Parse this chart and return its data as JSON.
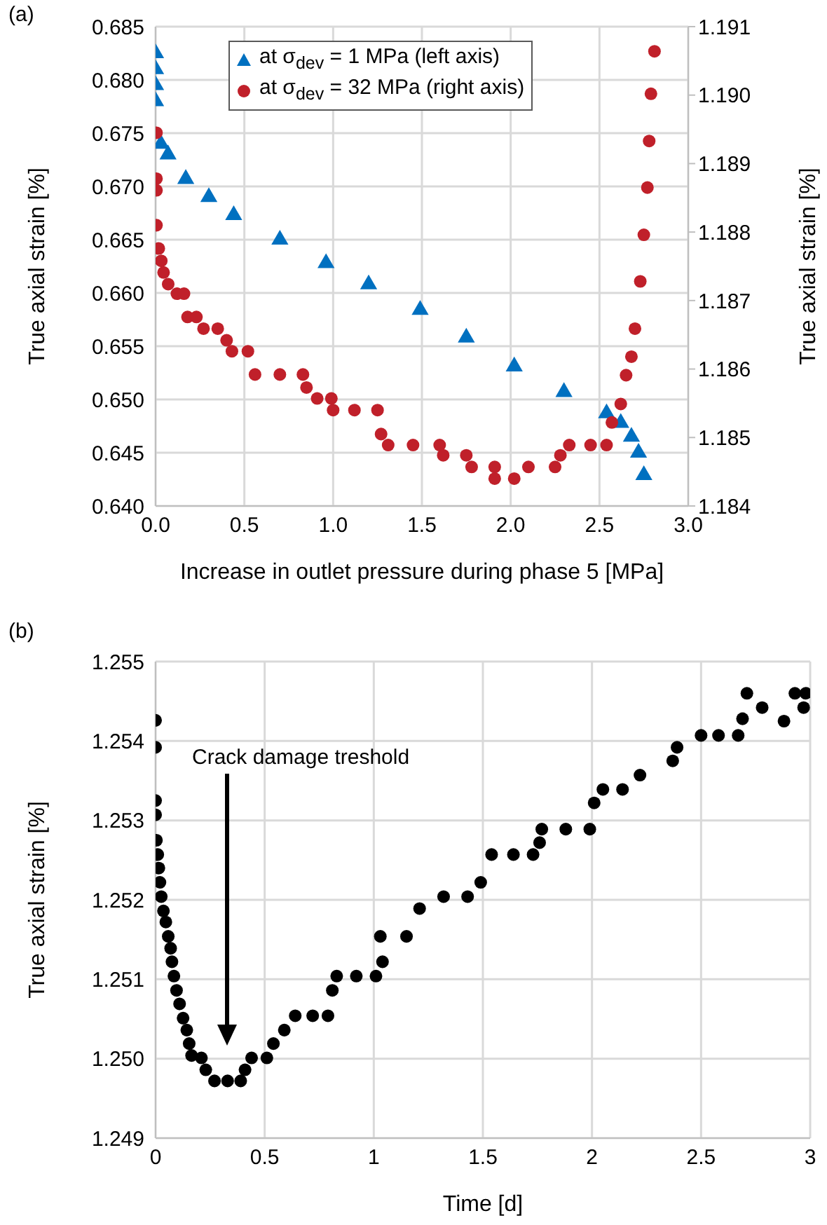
{
  "chart_data": [
    {
      "type": "scatter",
      "xlabel": "Increase in outlet pressure during phase 5 [MPa]",
      "ylabel": "True axial strain [%]",
      "y2label": "True axial strain [%]",
      "annotations": [
        "(a)"
      ],
      "xlim": [
        0,
        3
      ],
      "xticks": [
        {
          "value": 0,
          "label": "0.0"
        },
        {
          "value": 0.5,
          "label": "0.5"
        },
        {
          "value": 1,
          "label": "1.0"
        },
        {
          "value": 1.5,
          "label": "1.5"
        },
        {
          "value": 2,
          "label": "2.0"
        },
        {
          "value": 2.5,
          "label": "2.5"
        },
        {
          "value": 3,
          "label": "3.0"
        }
      ],
      "ylim": [
        0.64,
        0.685
      ],
      "yticks": [
        {
          "value": 0.64,
          "label": "0.640"
        },
        {
          "value": 0.645,
          "label": "0.645"
        },
        {
          "value": 0.65,
          "label": "0.650"
        },
        {
          "value": 0.655,
          "label": "0.655"
        },
        {
          "value": 0.66,
          "label": "0.660"
        },
        {
          "value": 0.665,
          "label": "0.665"
        },
        {
          "value": 0.67,
          "label": "0.670"
        },
        {
          "value": 0.675,
          "label": "0.675"
        },
        {
          "value": 0.68,
          "label": "0.680"
        },
        {
          "value": 0.685,
          "label": "0.685"
        }
      ],
      "y2lim": [
        1.184,
        1.191
      ],
      "y2ticks": [
        {
          "value": 1.184,
          "label": "1.184"
        },
        {
          "value": 1.185,
          "label": "1.185"
        },
        {
          "value": 1.186,
          "label": "1.186"
        },
        {
          "value": 1.187,
          "label": "1.187"
        },
        {
          "value": 1.188,
          "label": "1.188"
        },
        {
          "value": 1.189,
          "label": "1.189"
        },
        {
          "value": 1.19,
          "label": "1.190"
        },
        {
          "value": 1.191,
          "label": "1.191"
        }
      ],
      "grid": true,
      "legend": "top left",
      "series": [
        {
          "name": "at σ$_{dev}$ = 1 MPa (left axis)",
          "color": "#0070c0",
          "marker": "triangle",
          "axis": "y",
          "x": [
            0,
            0,
            0,
            0,
            0.005,
            0.03,
            0.07,
            0.17,
            0.3,
            0.44,
            0.7,
            0.96,
            1.2,
            1.49,
            1.75,
            2.02,
            2.3,
            2.54,
            2.62,
            2.68,
            2.72,
            2.75
          ],
          "values": [
            0.6825,
            0.681,
            0.6795,
            0.678,
            null,
            0.674,
            0.673,
            0.6707,
            0.669,
            0.6673,
            0.665,
            0.6628,
            0.6608,
            0.6584,
            0.6558,
            0.6531,
            0.6507,
            0.6487,
            0.6478,
            0.6465,
            0.645,
            0.6429
          ]
        },
        {
          "name": "at σ$_{dev}$ = 32 MPa (right axis)",
          "color": "#c0202a",
          "marker": "circle",
          "axis": "y2",
          "x": [
            0.005,
            0.005,
            0.005,
            0.005,
            0.018,
            0.032,
            0.045,
            0.071,
            0.12,
            0.16,
            0.18,
            0.23,
            0.27,
            0.35,
            0.4,
            0.43,
            0.52,
            0.56,
            0.7,
            0.83,
            0.85,
            0.91,
            0.99,
            1.0,
            1.12,
            1.25,
            1.27,
            1.31,
            1.45,
            1.6,
            1.62,
            1.75,
            1.78,
            1.91,
            1.91,
            2.02,
            2.1,
            2.25,
            2.28,
            2.33,
            2.45,
            2.54,
            2.57,
            2.62,
            2.65,
            2.68,
            2.7,
            2.73,
            2.75,
            2.77,
            2.78,
            2.79,
            2.81
          ],
          "values": [
            1.18945,
            1.18878,
            1.18861,
            1.1881,
            1.18776,
            1.18758,
            1.18741,
            1.18724,
            1.1871,
            1.1871,
            1.18676,
            1.18676,
            1.18659,
            1.18659,
            1.18642,
            1.18626,
            1.18626,
            1.18592,
            1.18592,
            1.18592,
            1.18573,
            1.18557,
            1.18557,
            1.1854,
            1.1854,
            1.1854,
            1.18505,
            1.18489,
            1.18489,
            1.18489,
            1.18474,
            1.18474,
            1.18457,
            1.18457,
            1.1844,
            1.1844,
            1.18457,
            1.18457,
            1.18474,
            1.18489,
            1.18489,
            1.18489,
            1.18522,
            1.18549,
            1.18591,
            1.18618,
            1.18659,
            1.18728,
            1.18796,
            1.18865,
            1.18933,
            1.19002,
            1.19064
          ]
        }
      ]
    },
    {
      "type": "scatter",
      "xlabel": "Time [d]",
      "ylabel": "True axial strain [%]",
      "annotations": [
        "(b)",
        "Crack damage treshold"
      ],
      "xlim": [
        0,
        3
      ],
      "xticks": [
        0,
        0.5,
        1,
        1.5,
        2,
        2.5,
        3
      ],
      "ylim": [
        1.249,
        1.255
      ],
      "yticks": [
        1.249,
        {
          "value": 1.25,
          "label": "1.250"
        },
        1.251,
        1.252,
        1.253,
        1.254,
        1.255
      ],
      "grid": true,
      "series": [
        {
          "color": "#000000",
          "marker": "circle",
          "x": [
            0,
            0,
            0,
            0,
            0.004,
            0.01,
            0.015,
            0.02,
            0.026,
            0.036,
            0.047,
            0.058,
            0.069,
            0.075,
            0.084,
            0.096,
            0.11,
            0.126,
            0.143,
            0.154,
            0.165,
            0.21,
            0.23,
            0.27,
            0.33,
            0.39,
            0.41,
            0.44,
            0.51,
            0.54,
            0.59,
            0.64,
            0.72,
            0.79,
            0.81,
            0.83,
            0.92,
            1.01,
            1.03,
            1.04,
            1.15,
            1.21,
            1.32,
            1.43,
            1.49,
            1.54,
            1.64,
            1.73,
            1.76,
            1.77,
            1.88,
            1.99,
            2.01,
            2.05,
            2.14,
            2.22,
            2.37,
            2.39,
            2.5,
            2.58,
            2.67,
            2.69,
            2.71,
            2.78,
            2.88,
            2.93,
            2.97,
            2.98
          ],
          "values": [
            1.25426,
            1.25392,
            1.25325,
            1.25307,
            1.25275,
            1.25257,
            1.2524,
            1.25222,
            1.25204,
            1.25186,
            1.25172,
            1.25154,
            1.25139,
            1.25122,
            1.25104,
            1.25086,
            1.25069,
            1.25051,
            1.25036,
            1.25019,
            1.25004,
            1.25001,
            1.24986,
            1.24972,
            1.24972,
            1.24972,
            1.24986,
            1.25001,
            1.25001,
            1.25019,
            1.25036,
            1.25054,
            1.25054,
            1.25054,
            1.25086,
            1.25104,
            1.25104,
            1.25104,
            1.25154,
            1.25122,
            1.25154,
            1.25189,
            1.25204,
            1.25204,
            1.25222,
            1.25257,
            1.25257,
            1.25257,
            1.25272,
            1.25289,
            1.25289,
            1.25289,
            1.25322,
            1.25339,
            1.25339,
            1.25357,
            1.25375,
            1.25392,
            1.25407,
            1.25407,
            1.25407,
            1.25428,
            1.2546,
            1.25442,
            1.25425,
            1.2546,
            1.25442,
            1.2546
          ]
        }
      ]
    }
  ]
}
